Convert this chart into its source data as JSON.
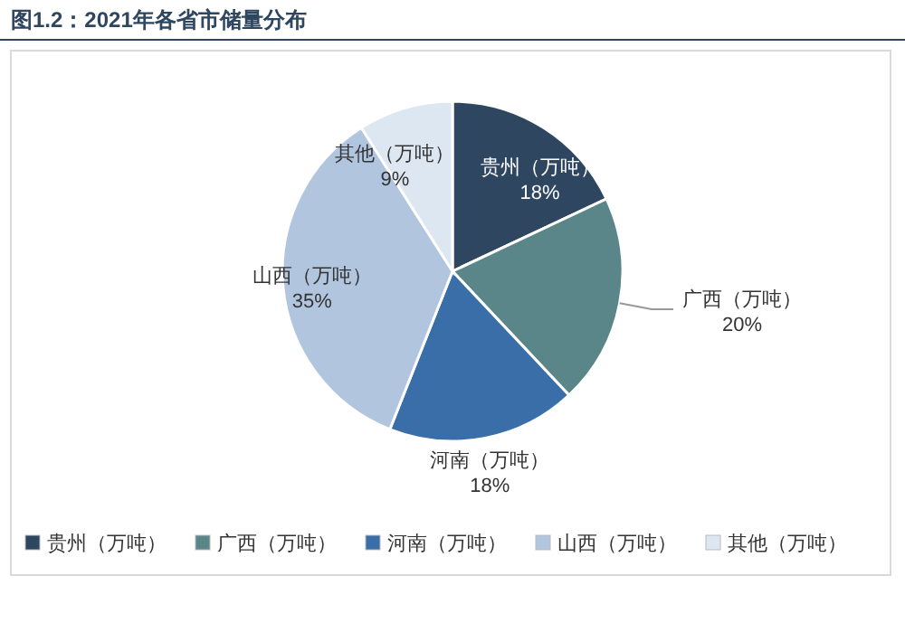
{
  "chart_data": {
    "type": "pie",
    "title": "图1.2：2021年各省市储量分布",
    "categories": [
      "贵州（万吨）",
      "广西（万吨）",
      "河南（万吨）",
      "山西（万吨）",
      "其他（万吨）"
    ],
    "values": [
      18,
      20,
      18,
      35,
      9
    ],
    "colors": [
      "#2e4660",
      "#5a8589",
      "#3a6ea8",
      "#b1c5df",
      "#dde7f2"
    ],
    "value_labels": [
      "18%",
      "20%",
      "18%",
      "35%",
      "9%"
    ],
    "legend": "bottom"
  }
}
